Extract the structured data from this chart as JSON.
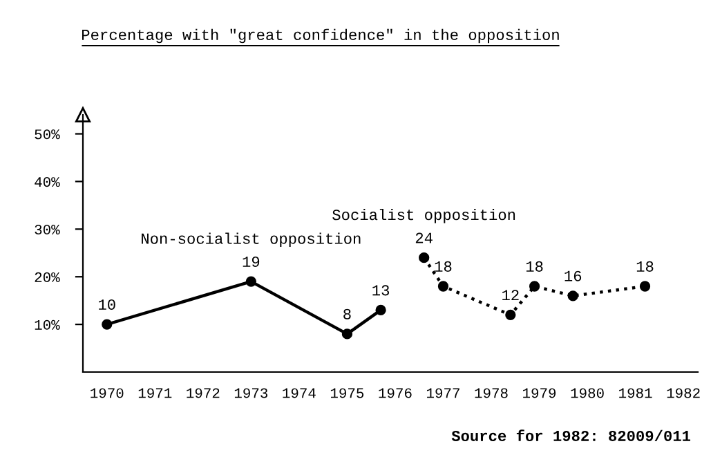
{
  "chart_data": {
    "type": "line",
    "title": "Percentage with \"great confidence\" in the opposition",
    "series": [
      {
        "name": "Non-socialist opposition",
        "color": "#000000",
        "line_style": "solid",
        "x": [
          1970,
          1973,
          1975,
          1975.7
        ],
        "values": [
          10,
          19,
          8,
          13
        ]
      },
      {
        "name": "Socialist opposition",
        "color": "#000000",
        "line_style": "dotted",
        "x": [
          1976.6,
          1977,
          1978.4,
          1978.9,
          1979.7,
          1981.2
        ],
        "values": [
          24,
          18,
          12,
          18,
          16,
          18
        ]
      }
    ],
    "xlim": [
      1969.5,
      1982.3
    ],
    "ylim": [
      0,
      54
    ],
    "xticks": [
      1970,
      1971,
      1972,
      1973,
      1974,
      1975,
      1976,
      1977,
      1978,
      1979,
      1980,
      1981,
      1982
    ],
    "yticks": [
      {
        "value": 10,
        "label": "10%"
      },
      {
        "value": 20,
        "label": "20%"
      },
      {
        "value": 30,
        "label": "30%"
      },
      {
        "value": 40,
        "label": "40%"
      },
      {
        "value": 50,
        "label": "50%"
      }
    ],
    "marker": "circle",
    "data_labels": true,
    "grid": false,
    "legend": false,
    "annotations": [
      "Source for 1982: 82009/011"
    ]
  }
}
